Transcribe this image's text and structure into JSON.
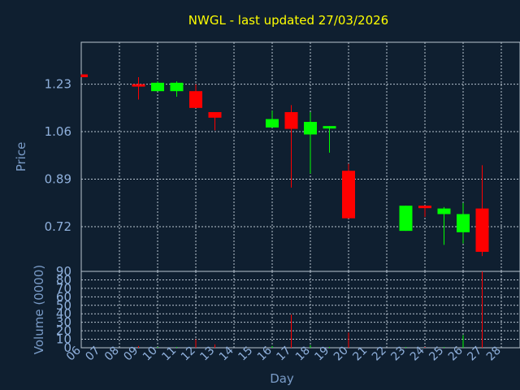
{
  "chart_data": {
    "type": "candlestick",
    "title": "NWGL - last updated 27/03/2026",
    "xlabel": "Day",
    "price_panel": {
      "ylabel": "Price",
      "yticks": [
        "1.23",
        "1.06",
        "0.89",
        "0.72"
      ],
      "ylim": [
        0.56,
        1.38
      ]
    },
    "volume_panel": {
      "ylabel": "Volume (0000)",
      "yticks": [
        "0",
        "10",
        "20",
        "30",
        "40",
        "50",
        "60",
        "70",
        "80",
        "90"
      ],
      "ylim": [
        0,
        90
      ]
    },
    "x_ticks": [
      "06",
      "07",
      "08",
      "09",
      "10",
      "11",
      "12",
      "13",
      "14",
      "15",
      "16",
      "17",
      "18",
      "19",
      "20",
      "21",
      "22",
      "23",
      "24",
      "25",
      "26",
      "27",
      "28"
    ],
    "candles": [
      {
        "day": "06",
        "open": 1.265,
        "close": 1.255,
        "high": 1.265,
        "low": 1.255,
        "volume": 0
      },
      {
        "day": "09",
        "open": 1.23,
        "close": 1.225,
        "high": 1.255,
        "low": 1.175,
        "volume": 2
      },
      {
        "day": "10",
        "open": 1.205,
        "close": 1.235,
        "high": 1.24,
        "low": 1.205,
        "volume": 1
      },
      {
        "day": "11",
        "open": 1.205,
        "close": 1.235,
        "high": 1.24,
        "low": 1.185,
        "volume": 1
      },
      {
        "day": "12",
        "open": 1.205,
        "close": 1.145,
        "high": 1.23,
        "low": 1.145,
        "volume": 10
      },
      {
        "day": "13",
        "open": 1.13,
        "close": 1.11,
        "high": 1.13,
        "low": 1.065,
        "volume": 4
      },
      {
        "day": "16",
        "open": 1.075,
        "close": 1.105,
        "high": 1.135,
        "low": 1.075,
        "volume": 2
      },
      {
        "day": "17",
        "open": 1.13,
        "close": 1.07,
        "high": 1.155,
        "low": 0.86,
        "volume": 39
      },
      {
        "day": "18",
        "open": 1.05,
        "close": 1.095,
        "high": 1.13,
        "low": 0.91,
        "volume": 3
      },
      {
        "day": "19",
        "open": 1.075,
        "close": 1.08,
        "high": 1.08,
        "low": 0.985,
        "volume": 1
      },
      {
        "day": "20",
        "open": 0.92,
        "close": 0.75,
        "high": 0.945,
        "low": 0.75,
        "volume": 18
      },
      {
        "day": "23",
        "open": 0.705,
        "close": 0.795,
        "high": 0.795,
        "low": 0.705,
        "volume": 1
      },
      {
        "day": "24",
        "open": 0.795,
        "close": 0.79,
        "high": 0.795,
        "low": 0.755,
        "volume": 1
      },
      {
        "day": "25",
        "open": 0.765,
        "close": 0.785,
        "high": 0.79,
        "low": 0.655,
        "volume": 1
      },
      {
        "day": "26",
        "open": 0.7,
        "close": 0.765,
        "high": 0.805,
        "low": 0.66,
        "volume": 15
      },
      {
        "day": "27",
        "open": 0.785,
        "close": 0.63,
        "high": 0.94,
        "low": 0.615,
        "volume": 92
      }
    ],
    "colors": {
      "background": "#0f1f30",
      "up": "#00ff00",
      "down": "#ff0000",
      "grid": "#b8c4d0",
      "title": "#ffff00",
      "axis_text": "#8fb0dc"
    }
  }
}
